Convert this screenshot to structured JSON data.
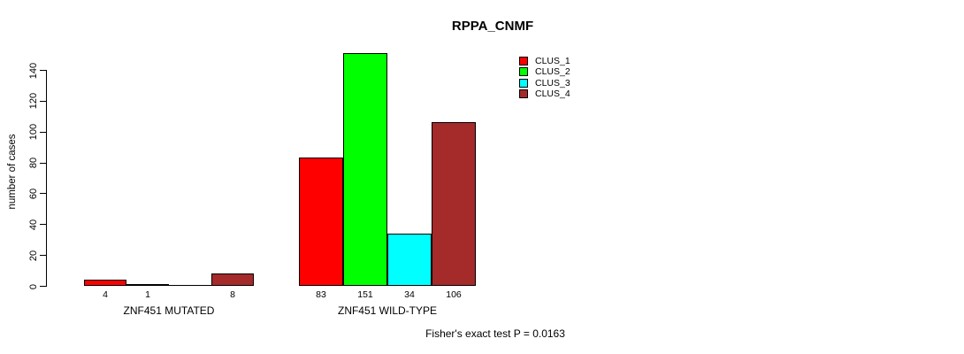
{
  "chart_data": {
    "type": "bar",
    "title": "RPPA_CNMF",
    "ylabel": "number of cases",
    "xlabel": "",
    "ylim": [
      0,
      140
    ],
    "yticks": [
      0,
      20,
      40,
      60,
      80,
      100,
      120,
      140
    ],
    "categories": [
      "ZNF451 MUTATED",
      "ZNF451 WILD-TYPE"
    ],
    "series": [
      {
        "name": "CLUS_1",
        "color": "#FF0000",
        "values": [
          4,
          83
        ],
        "value_labels": [
          "4",
          "83"
        ]
      },
      {
        "name": "CLUS_2",
        "color": "#00FF00",
        "values": [
          1,
          151
        ],
        "value_labels": [
          "1",
          "151"
        ]
      },
      {
        "name": "CLUS_3",
        "color": "#00FFFF",
        "values": [
          0,
          34
        ],
        "value_labels": [
          "",
          "34"
        ]
      },
      {
        "name": "CLUS_4",
        "color": "#A52A2A",
        "values": [
          8,
          106
        ],
        "value_labels": [
          "8",
          "106"
        ]
      }
    ],
    "legend": {
      "position": "top-right",
      "entries": [
        "CLUS_1",
        "CLUS_2",
        "CLUS_3",
        "CLUS_4"
      ]
    },
    "grid": false,
    "annotation": "Fisher's exact test P = 0.0163",
    "bar_border_color": "#000000",
    "axis_color": "#000000",
    "text_color": "#000000",
    "background_color": "#FFFFFF"
  }
}
